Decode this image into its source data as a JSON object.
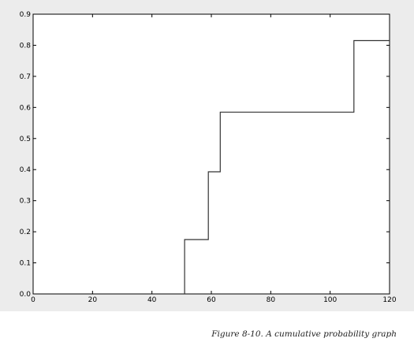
{
  "chart_data": {
    "type": "line",
    "step": true,
    "title": "",
    "xlabel": "",
    "ylabel": "",
    "xlim": [
      0,
      120
    ],
    "ylim": [
      0,
      0.9
    ],
    "xticks": [
      "0",
      "20",
      "40",
      "60",
      "80",
      "100",
      "120"
    ],
    "yticks": [
      "0.0",
      "0.1",
      "0.2",
      "0.3",
      "0.4",
      "0.5",
      "0.6",
      "0.7",
      "0.8",
      "0.9"
    ],
    "grid": false,
    "series": [
      {
        "x": [
          51,
          51,
          59,
          59,
          63,
          63,
          108,
          108,
          120
        ],
        "y": [
          0,
          0.175,
          0.175,
          0.393,
          0.393,
          0.585,
          0.585,
          0.815,
          0.815
        ],
        "color": "#333333"
      }
    ]
  },
  "caption": "Figure 8-10. A cumulative probability graph"
}
